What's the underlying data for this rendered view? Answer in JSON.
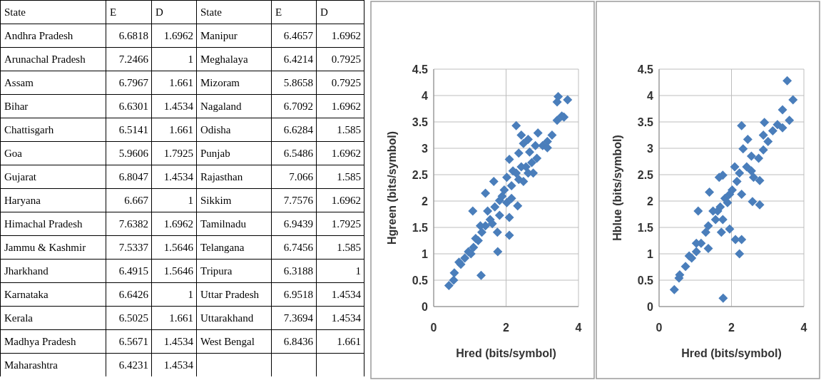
{
  "chart_data": [
    {
      "type": "other",
      "categories": [
        "State",
        "E",
        "D",
        "State",
        "E",
        "D"
      ],
      "cell_labels": [
        [
          "Andhra Pradesh",
          "6.6818",
          "1.6962",
          "Manipur",
          "6.4657",
          "1.6962"
        ],
        [
          "Arunachal Pradesh",
          "7.2466",
          "1",
          "Meghalaya",
          "6.4214",
          "0.7925"
        ],
        [
          "Assam",
          "6.7967",
          "1.661",
          "Mizoram",
          "5.8658",
          "0.7925"
        ],
        [
          "Bihar",
          "6.6301",
          "1.4534",
          "Nagaland",
          "6.7092",
          "1.6962"
        ],
        [
          "Chattisgarh",
          "6.5141",
          "1.661",
          "Odisha",
          "6.6284",
          "1.585"
        ],
        [
          "Goa",
          "5.9606",
          "1.7925",
          "Punjab",
          "6.5486",
          "1.6962"
        ],
        [
          "Gujarat",
          "6.8047",
          "1.4534",
          "Rajasthan",
          "7.066",
          "1.585"
        ],
        [
          "Haryana",
          "6.667",
          "1",
          "Sikkim",
          "7.7576",
          "1.6962"
        ],
        [
          "Himachal Pradesh",
          "7.6382",
          "1.6962",
          "Tamilnadu",
          "6.9439",
          "1.7925"
        ],
        [
          "Jammu & Kashmir",
          "7.5337",
          "1.5646",
          "Telangana",
          "6.7456",
          "1.585"
        ],
        [
          "Jharkhand",
          "6.4915",
          "1.5646",
          "Tripura",
          "6.3188",
          "1"
        ],
        [
          "Karnataka",
          "6.6426",
          "1",
          "Uttar Pradesh",
          "6.9518",
          "1.4534"
        ],
        [
          "Kerala",
          "6.5025",
          "1.661",
          "Uttarakhand",
          "7.3694",
          "1.4534"
        ],
        [
          "Madhya Pradesh",
          "6.5671",
          "1.4534",
          "West Bengal",
          "6.8436",
          "1.661"
        ],
        [
          "Maharashtra",
          "6.4231",
          "1.4534",
          null,
          null,
          null
        ]
      ]
    },
    {
      "type": "scatter",
      "xlabel": "Hred (bits/symbol)",
      "ylabel": "Hgreen (bits/symbol)",
      "xlim": [
        0,
        4
      ],
      "xticks": [
        0,
        2,
        4
      ],
      "ylim": [
        0,
        4.5
      ],
      "yticks": [
        0,
        0.5,
        1,
        1.5,
        2,
        2.5,
        3,
        3.5,
        4,
        4.5
      ],
      "grid": true,
      "marker": "diamond",
      "color": "#4a7ebb",
      "x": [
        0.42,
        0.55,
        0.57,
        1.31,
        0.75,
        0.86,
        1.03,
        1.1,
        1.23,
        1.77,
        1.33,
        1.43,
        1.56,
        1.76,
        2.09,
        1.08,
        1.49,
        1.69,
        1.82,
        1.43,
        1.66,
        1.95,
        2.09,
        2.32,
        2.02,
        2.09,
        2.19,
        2.35,
        2.28,
        2.42,
        2.61,
        2.55,
        2.48,
        2.75,
        2.85,
        2.88,
        3.01,
        3.14,
        3.27,
        3.14,
        3.41,
        3.6,
        3.44,
        3.7,
        3.41,
        3.54,
        1.89,
        2.15,
        2.35,
        2.61,
        2.71,
        2.42,
        2.28,
        2.15,
        2.02,
        1.82,
        1.62,
        1.29,
        1.16,
        0.96,
        0.7,
        2.65,
        2.81,
        2.48
      ],
      "values": [
        0.4,
        0.5,
        0.64,
        0.59,
        0.8,
        0.92,
        1,
        1.12,
        1.25,
        1.04,
        1.41,
        1.53,
        1.65,
        1.41,
        1.35,
        1.81,
        1.81,
        1.89,
        2.01,
        2.15,
        2.37,
        2.21,
        1.69,
        1.91,
        2.45,
        2.79,
        2.57,
        2.91,
        3.43,
        3.25,
        3.17,
        2.65,
        2.37,
        2.53,
        2.81,
        3.29,
        3.05,
        3.13,
        3.25,
        3.01,
        3.53,
        3.59,
        3.98,
        3.92,
        3.88,
        3.61,
        2.09,
        2.29,
        2.41,
        2.53,
        2.73,
        2.65,
        2.53,
        2.05,
        1.97,
        1.73,
        1.57,
        1.53,
        1.29,
        1.04,
        0.84,
        2.93,
        3.05,
        3.09
      ]
    },
    {
      "type": "scatter",
      "xlabel": "Hred (bits/symbol)",
      "ylabel": "Hblue (bits/symbol)",
      "xlim": [
        0,
        4
      ],
      "xticks": [
        0,
        2,
        4
      ],
      "ylim": [
        0,
        4.5
      ],
      "yticks": [
        0,
        0.5,
        1,
        1.5,
        2,
        2.5,
        3,
        3.5,
        4,
        4.5
      ],
      "grid": true,
      "marker": "diamond",
      "color": "#4a7ebb",
      "x": [
        0.42,
        0.55,
        0.57,
        1.77,
        0.73,
        0.9,
        1.03,
        1.16,
        1.36,
        1.36,
        1.56,
        1.72,
        1.95,
        2.11,
        2.28,
        2.22,
        1.08,
        1.49,
        1.69,
        1.39,
        1.66,
        1.76,
        1.82,
        2.02,
        2.09,
        2.28,
        2.58,
        2.78,
        2.78,
        2.61,
        2.42,
        2.32,
        2.45,
        2.28,
        2.55,
        2.75,
        2.91,
        2.88,
        3.14,
        3.27,
        3.41,
        3.6,
        3.41,
        3.54,
        3.7,
        3.01,
        2.88,
        2.15,
        1.95,
        1.89,
        1.76,
        1.62,
        1.29,
        1.03,
        0.83,
        2.22,
        2.55
      ],
      "values": [
        0.32,
        0.54,
        0.6,
        0.16,
        0.76,
        0.92,
        1.04,
        1.2,
        1.1,
        1.53,
        1.65,
        1.41,
        1.47,
        1.27,
        1.27,
        1,
        1.81,
        1.81,
        1.89,
        2.17,
        2.45,
        2.49,
        2.05,
        2.21,
        2.65,
        2.13,
        1.99,
        1.93,
        2.39,
        2.45,
        2.65,
        2.99,
        3.17,
        3.43,
        2.85,
        2.81,
        3.49,
        3.25,
        3.33,
        3.45,
        3.39,
        3.53,
        3.73,
        4.28,
        3.92,
        3.13,
        2.97,
        2.37,
        2.13,
        1.97,
        1.65,
        1.81,
        1.41,
        1.2,
        0.96,
        2.53,
        2.57
      ]
    }
  ]
}
